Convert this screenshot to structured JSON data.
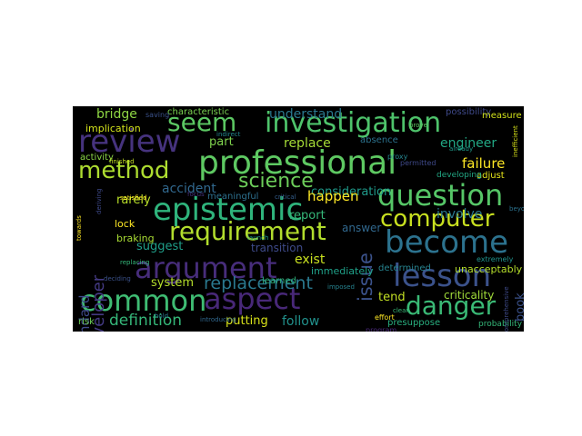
{
  "words": [
    {
      "text": "review",
      "color": "#46337e"
    },
    {
      "text": "seem",
      "color": "#5cc863"
    },
    {
      "text": "investigation",
      "color": "#4ec36b"
    },
    {
      "text": "professional",
      "color": "#5ec962"
    },
    {
      "text": "method",
      "color": "#addc30"
    },
    {
      "text": "question",
      "color": "#56c667"
    },
    {
      "text": "epistemic",
      "color": "#2fb47c"
    },
    {
      "text": "computer",
      "color": "#c8e020"
    },
    {
      "text": "requirement",
      "color": "#b2dd2d"
    },
    {
      "text": "become",
      "color": "#2c728e"
    },
    {
      "text": "argument",
      "color": "#472d7b"
    },
    {
      "text": "lesson",
      "color": "#3b528b"
    },
    {
      "text": "common",
      "color": "#3fbc73"
    },
    {
      "text": "aspect",
      "color": "#482878"
    },
    {
      "text": "danger",
      "color": "#3aba76"
    },
    {
      "text": "science",
      "color": "#6ccd5a"
    },
    {
      "text": "replacement",
      "color": "#2a788e"
    },
    {
      "text": "definition",
      "color": "#35b779"
    },
    {
      "text": "issue",
      "color": "#3b528b"
    },
    {
      "text": "developer",
      "color": "#443a83"
    },
    {
      "text": "standard",
      "color": "#3e4989"
    },
    {
      "text": "bridge",
      "color": "#8fd744"
    },
    {
      "text": "understand",
      "color": "#2a788e"
    },
    {
      "text": "consideration",
      "color": "#1f9a8a"
    },
    {
      "text": "failure",
      "color": "#fde725"
    },
    {
      "text": "engineer",
      "color": "#22a884"
    },
    {
      "text": "replace",
      "color": "#a5db36"
    },
    {
      "text": "accident",
      "color": "#31688e"
    },
    {
      "text": "happen",
      "color": "#fde725"
    },
    {
      "text": "report",
      "color": "#35b779"
    },
    {
      "text": "involve",
      "color": "#2a788e"
    },
    {
      "text": "answer",
      "color": "#31688e"
    },
    {
      "text": "exist",
      "color": "#c8e020"
    },
    {
      "text": "suggest",
      "color": "#1f9e89"
    },
    {
      "text": "system",
      "color": "#b5de2b"
    },
    {
      "text": "tend",
      "color": "#c2df23"
    },
    {
      "text": "book",
      "color": "#3b528b"
    },
    {
      "text": "follow",
      "color": "#21918c"
    },
    {
      "text": "putting",
      "color": "#d8e219"
    },
    {
      "text": "criticality",
      "color": "#a0da39"
    },
    {
      "text": "part",
      "color": "#7fd34e"
    },
    {
      "text": "implication",
      "color": "#d2e21b"
    },
    {
      "text": "rarely",
      "color": "#b8de29"
    },
    {
      "text": "lock",
      "color": "#fde725"
    },
    {
      "text": "braking",
      "color": "#a8db34"
    },
    {
      "text": "immediately",
      "color": "#1fa088"
    },
    {
      "text": "transition",
      "color": "#3e4a89"
    },
    {
      "text": "unacceptably",
      "color": "#b5de2b"
    },
    {
      "text": "determined",
      "color": "#26828e"
    },
    {
      "text": "presuppose",
      "color": "#29af7f"
    },
    {
      "text": "probability",
      "color": "#35b779"
    },
    {
      "text": "risk",
      "color": "#6ece58"
    },
    {
      "text": "possibility",
      "color": "#3e4989"
    },
    {
      "text": "measure",
      "color": "#d2e21b"
    },
    {
      "text": "absence",
      "color": "#2c728e"
    },
    {
      "text": "adjust",
      "color": "#e5e419"
    },
    {
      "text": "activity",
      "color": "#8bd646"
    },
    {
      "text": "characteristic",
      "color": "#7ad151"
    },
    {
      "text": "saving",
      "color": "#3b528b"
    },
    {
      "text": "meaningful",
      "color": "#2d708e"
    },
    {
      "text": "learned",
      "color": "#2fb47c"
    },
    {
      "text": "program",
      "color": "#482878"
    },
    {
      "text": "effort",
      "color": "#fde725"
    },
    {
      "text": "developing",
      "color": "#22a884"
    },
    {
      "text": "permitted",
      "color": "#3e4989"
    },
    {
      "text": "imposed",
      "color": "#26828e"
    },
    {
      "text": "already",
      "color": "#1f9a8a"
    },
    {
      "text": "proxy",
      "color": "#25848e"
    },
    {
      "text": "extremely",
      "color": "#20928c"
    },
    {
      "text": "replacing",
      "color": "#35b779"
    },
    {
      "text": "deciding",
      "color": "#3b528b"
    },
    {
      "text": "introducing",
      "color": "#31688e"
    },
    {
      "text": "satisfied",
      "color": "#fde725"
    },
    {
      "text": "finished",
      "color": "#c2df23"
    },
    {
      "text": "deriving",
      "color": "#3e4989"
    },
    {
      "text": "indirect",
      "color": "#24868e"
    },
    {
      "text": "clear",
      "color": "#38b977"
    },
    {
      "text": "prove",
      "color": "#5ec962"
    },
    {
      "text": "comprehensive",
      "color": "#3e4a89"
    },
    {
      "text": "towards",
      "color": "#fde725"
    },
    {
      "text": "beyond",
      "color": "#2c728e"
    },
    {
      "text": "inefficient",
      "color": "#d8e219"
    },
    {
      "text": "hold",
      "color": "#2a788e"
    },
    {
      "text": "focus",
      "color": "#46337e"
    },
    {
      "text": "launch",
      "color": "#1f9e89"
    },
    {
      "text": "critical",
      "color": "#355f8d"
    }
  ]
}
